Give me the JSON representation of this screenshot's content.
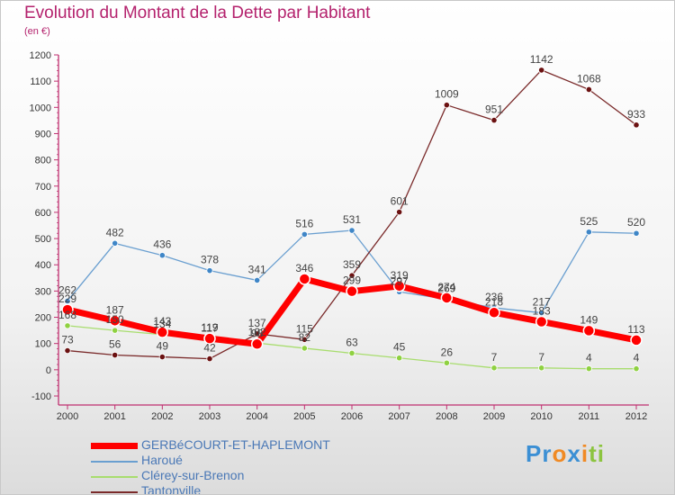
{
  "chart_data": {
    "type": "line",
    "title": "Evolution du Montant de la Dette par Habitant",
    "subtitle": "(en €)",
    "x": [
      "2000",
      "2001",
      "2002",
      "2003",
      "2004",
      "2005",
      "2006",
      "2007",
      "2008",
      "2009",
      "2010",
      "2011",
      "2012"
    ],
    "ylim": [
      -100,
      1200
    ],
    "yticks": [
      -100,
      0,
      100,
      200,
      300,
      400,
      500,
      600,
      700,
      800,
      900,
      1000,
      1100,
      1200
    ],
    "grid": false,
    "legend_position": "bottom-left",
    "series": [
      {
        "name": "GERBéCOURT-ET-HAPLEMONT",
        "color": "#ff0000",
        "marker": "#ff0000",
        "width": 7,
        "values": [
          229,
          187,
          143,
          119,
          98,
          346,
          299,
          319,
          274,
          218,
          183,
          149,
          113
        ]
      },
      {
        "name": "Haroué",
        "color": "#6a9fd0",
        "marker": "#3f86c7",
        "width": 1.3,
        "values": [
          262,
          482,
          436,
          378,
          341,
          516,
          531,
          297,
          269,
          236,
          217,
          525,
          520
        ]
      },
      {
        "name": "Clérey-sur-Brenon",
        "color": "#a8dd6e",
        "marker": "#8fd141",
        "width": 1.3,
        "values": [
          168,
          150,
          134,
          117,
          102,
          82,
          63,
          45,
          26,
          7,
          7,
          4,
          4
        ]
      },
      {
        "name": "Tantonville",
        "color": "#7a2a2a",
        "marker": "#6b1111",
        "width": 1.3,
        "values": [
          73,
          56,
          49,
          42,
          137,
          115,
          359,
          601,
          1009,
          951,
          1142,
          1068,
          933
        ]
      }
    ]
  },
  "logo": {
    "parts": [
      "Pr",
      "o",
      "x",
      "i",
      "ti"
    ]
  }
}
